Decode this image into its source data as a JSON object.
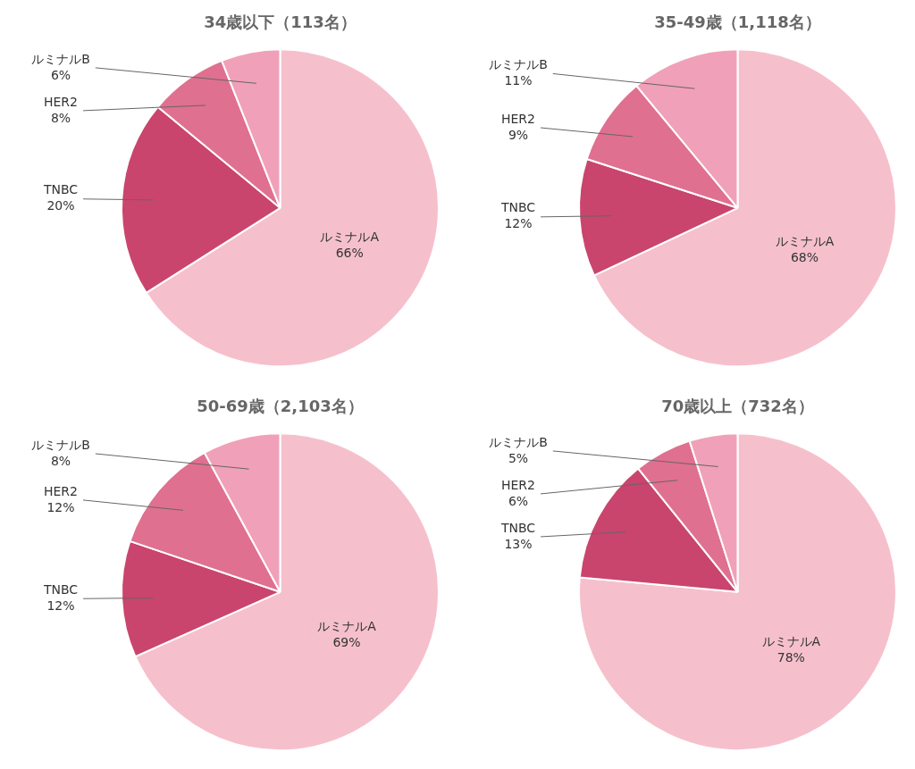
{
  "chart_data": [
    {
      "type": "pie",
      "title": "34歳以下（113名）",
      "categories": [
        "ルミナルA",
        "TNBC",
        "HER2",
        "ルミナルB"
      ],
      "values": [
        66,
        20,
        8,
        6
      ],
      "value_labels": [
        "66%",
        "20%",
        "8%",
        "6%"
      ],
      "colors": [
        "#F5C0CC",
        "#C9456E",
        "#E07090",
        "#F0A0B8"
      ],
      "data_labels": true
    },
    {
      "type": "pie",
      "title": "35-49歳（1,118名）",
      "categories": [
        "ルミナルA",
        "TNBC",
        "HER2",
        "ルミナルB"
      ],
      "values": [
        68,
        12,
        9,
        11
      ],
      "value_labels": [
        "68%",
        "12%",
        "9%",
        "11%"
      ],
      "colors": [
        "#F5C0CC",
        "#C9456E",
        "#E07090",
        "#F0A0B8"
      ],
      "data_labels": true
    },
    {
      "type": "pie",
      "title": "50-69歳（2,103名）",
      "categories": [
        "ルミナルA",
        "TNBC",
        "HER2",
        "ルミナルB"
      ],
      "values": [
        69,
        12,
        12,
        8
      ],
      "value_labels": [
        "69%",
        "12%",
        "12%",
        "8%"
      ],
      "colors": [
        "#F5C0CC",
        "#C9456E",
        "#E07090",
        "#F0A0B8"
      ],
      "data_labels": true
    },
    {
      "type": "pie",
      "title": "70歳以上（732名）",
      "categories": [
        "ルミナルA",
        "TNBC",
        "HER2",
        "ルミナルB"
      ],
      "values": [
        78,
        13,
        6,
        5
      ],
      "value_labels": [
        "78%",
        "13%",
        "6%",
        "5%"
      ],
      "colors": [
        "#F5C0CC",
        "#C9456E",
        "#E07090",
        "#F0A0B8"
      ],
      "data_labels": true
    }
  ]
}
